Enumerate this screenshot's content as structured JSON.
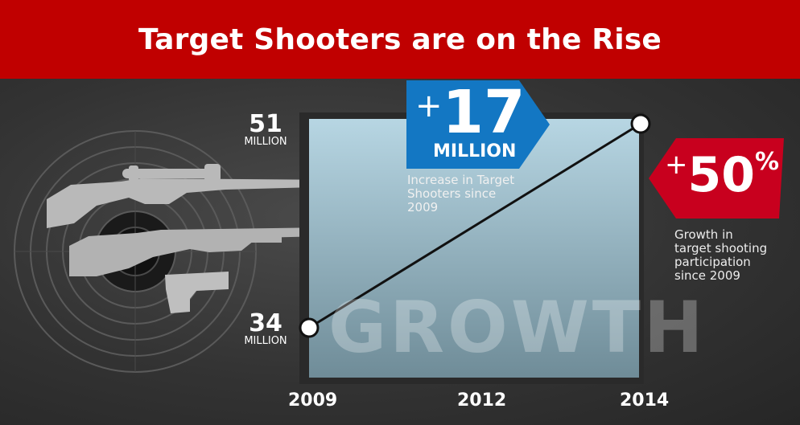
{
  "header": {
    "title": "Target Shooters are on the Rise"
  },
  "chart_data": {
    "type": "line",
    "title": "Target Shooters are on the Rise",
    "x": [
      2009,
      2014
    ],
    "x_ticks": [
      "2009",
      "2012",
      "2014"
    ],
    "series": [
      {
        "values": [
          34,
          51
        ]
      }
    ],
    "value_labels": [
      {
        "number": "34",
        "unit": "MILLION"
      },
      {
        "number": "51",
        "unit": "MILLION"
      }
    ],
    "xlim": [
      2009,
      2014
    ],
    "ylim": [
      34,
      51
    ],
    "grid": false,
    "background_word": "GROWTH",
    "callouts": {
      "increase": {
        "prefix": "+",
        "number": "17",
        "unit": "MILLION",
        "caption": [
          "Increase in Target",
          "Shooters since",
          "2009"
        ]
      },
      "growth": {
        "prefix": "+",
        "number": "50",
        "suffix": "%",
        "caption": [
          "Growth in",
          "target shooting",
          "participation",
          "since 2009"
        ]
      }
    }
  },
  "colors": {
    "header_bg": "#c00000",
    "increase_badge": "#1377c3",
    "growth_badge": "#c8001e",
    "panel_top": "#b7d6e3",
    "panel_bottom": "#6f8c98"
  },
  "icons": [
    "target-icon",
    "scoped-rifle-icon",
    "rifle-icon",
    "pistol-icon"
  ]
}
